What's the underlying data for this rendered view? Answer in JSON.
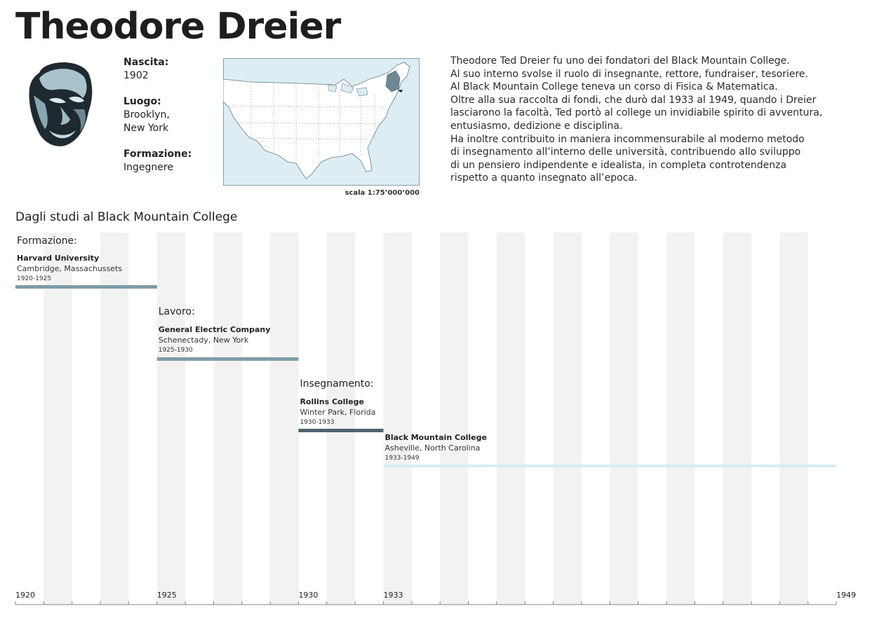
{
  "header": {
    "title": "Theodore Dreier"
  },
  "profile": {
    "portrait_icon": "portrait-illustration",
    "facts": [
      {
        "label": "Nascita:",
        "value": "1902"
      },
      {
        "label": "Luogo:",
        "value": "Brooklyn,\nNew York"
      },
      {
        "label": "Formazione:",
        "value": "Ingegnere"
      }
    ]
  },
  "map": {
    "icon": "usa-map-icon",
    "highlight": "New York",
    "scale": "scala 1:75’000’000"
  },
  "bio": {
    "lines": [
      "Theodore Ted Dreier fu uno dei fondatori del Black Mountain College.",
      "Al suo interno svolse il ruolo di insegnante, rettore, fundraiser, tesoriere.",
      "Al Black Mountain College teneva un corso di Fisica & Matematica.",
      "Oltre alla sua raccolta di fondi, che durò dal 1933 al 1949, quando i Dreier",
      "lasciarono la facoltà, Ted portò al college un invidiabile spirito di avventura,",
      "entusiasmo, dedizione e disciplina.",
      "Ha inoltre contribuito in maniera incommensurabile al moderno metodo",
      "di insegnamento all’interno delle università, contribuendo allo sviluppo",
      "di un pensiero indipendente e idealista, in completa controtendenza",
      "rispetto a quanto insegnato all’epoca."
    ]
  },
  "timeline": {
    "title": "Dagli studi al Black Mountain College"
  },
  "chart_data": {
    "type": "timeline",
    "title": "Dagli studi al Black Mountain College",
    "x_range": [
      1920,
      1949
    ],
    "tick_labels": [
      "1920",
      "1925",
      "1930",
      "1933",
      "1949"
    ],
    "label_years": [
      1920,
      1925,
      1930,
      1933,
      1949
    ],
    "band_unit_years": 1,
    "series": [
      {
        "category": "Formazione:",
        "name": "Harvard University",
        "location": "Cambridge, Massachussets",
        "period": "1920-1925",
        "start": 1920,
        "end": 1925,
        "color": "#7f9ca4"
      },
      {
        "category": "Lavoro:",
        "name": "General Electric Company",
        "location": "Schenectady, New York",
        "period": "1925-1930",
        "start": 1925,
        "end": 1930,
        "color": "#7f9ca4"
      },
      {
        "category": "Insegnamento:",
        "name": "Rollins College",
        "location": "Winter Park, Florida",
        "period": "1930-1933",
        "start": 1930,
        "end": 1933,
        "color": "#4d6470"
      },
      {
        "category": "",
        "name": "Black Mountain College",
        "location": "Asheville, North Carolina",
        "period": "1933-1949",
        "start": 1933,
        "end": 1949,
        "color": "#d9ecf2"
      }
    ]
  },
  "colors": {
    "band": "#f2f2f2",
    "map_water": "#dcedf3",
    "map_highlight": "#6d8891"
  }
}
